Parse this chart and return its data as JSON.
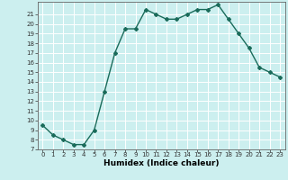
{
  "x": [
    0,
    1,
    2,
    3,
    4,
    5,
    6,
    7,
    8,
    9,
    10,
    11,
    12,
    13,
    14,
    15,
    16,
    17,
    18,
    19,
    20,
    21,
    22,
    23
  ],
  "y": [
    9.5,
    8.5,
    8.0,
    7.5,
    7.5,
    9.0,
    13.0,
    17.0,
    19.5,
    19.5,
    21.5,
    21.0,
    20.5,
    20.5,
    21.0,
    21.5,
    21.5,
    22.0,
    20.5,
    19.0,
    17.5,
    15.5,
    15.0,
    14.5
  ],
  "xlabel": "Humidex (Indice chaleur)",
  "ylim": [
    7,
    22
  ],
  "xlim": [
    -0.5,
    23.5
  ],
  "yticks": [
    7,
    8,
    9,
    10,
    11,
    12,
    13,
    14,
    15,
    16,
    17,
    18,
    19,
    20,
    21
  ],
  "xticks": [
    0,
    1,
    2,
    3,
    4,
    5,
    6,
    7,
    8,
    9,
    10,
    11,
    12,
    13,
    14,
    15,
    16,
    17,
    18,
    19,
    20,
    21,
    22,
    23
  ],
  "line_color": "#1a6b5a",
  "bg_color": "#ccefef",
  "grid_color": "#ffffff",
  "marker": "D",
  "marker_size": 2.0,
  "line_width": 1.0,
  "tick_fontsize": 5.0,
  "xlabel_fontsize": 6.5
}
